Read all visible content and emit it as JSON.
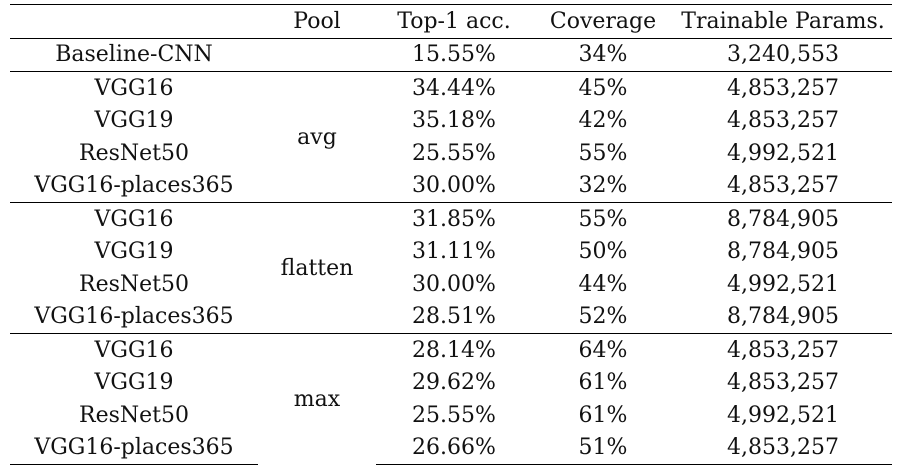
{
  "headers": [
    "",
    "Pool",
    "Top-1 acc.",
    "Coverage",
    "Trainable Params."
  ],
  "baseline": {
    "model": "Baseline-CNN",
    "pool": "",
    "top1": "15.55%",
    "coverage": "34%",
    "params": "3,240,553"
  },
  "groups": [
    {
      "pool": "avg",
      "rows": [
        {
          "model": "VGG16",
          "top1": "34.44%",
          "coverage": "45%",
          "params": "4,853,257"
        },
        {
          "model": "VGG19",
          "top1": "35.18%",
          "coverage": "42%",
          "params": "4,853,257"
        },
        {
          "model": "ResNet50",
          "top1": "25.55%",
          "coverage": "55%",
          "params": "4,992,521"
        },
        {
          "model": "VGG16-places365",
          "top1": "30.00%",
          "coverage": "32%",
          "params": "4,853,257"
        }
      ]
    },
    {
      "pool": "flatten",
      "rows": [
        {
          "model": "VGG16",
          "top1": "31.85%",
          "coverage": "55%",
          "params": "8,784,905"
        },
        {
          "model": "VGG19",
          "top1": "31.11%",
          "coverage": "50%",
          "params": "8,784,905"
        },
        {
          "model": "ResNet50",
          "top1": "30.00%",
          "coverage": "44%",
          "params": "4,992,521"
        },
        {
          "model": "VGG16-places365",
          "top1": "28.51%",
          "coverage": "52%",
          "params": "8,784,905"
        }
      ]
    },
    {
      "pool": "max",
      "rows": [
        {
          "model": "VGG16",
          "top1": "28.14%",
          "coverage": "64%",
          "params": "4,853,257"
        },
        {
          "model": "VGG19",
          "top1": "29.62%",
          "coverage": "61%",
          "params": "4,853,257"
        },
        {
          "model": "ResNet50",
          "top1": "25.55%",
          "coverage": "61%",
          "params": "4,992,521"
        },
        {
          "model": "VGG16-places365",
          "top1": "26.66%",
          "coverage": "51%",
          "params": "4,853,257"
        }
      ]
    }
  ]
}
